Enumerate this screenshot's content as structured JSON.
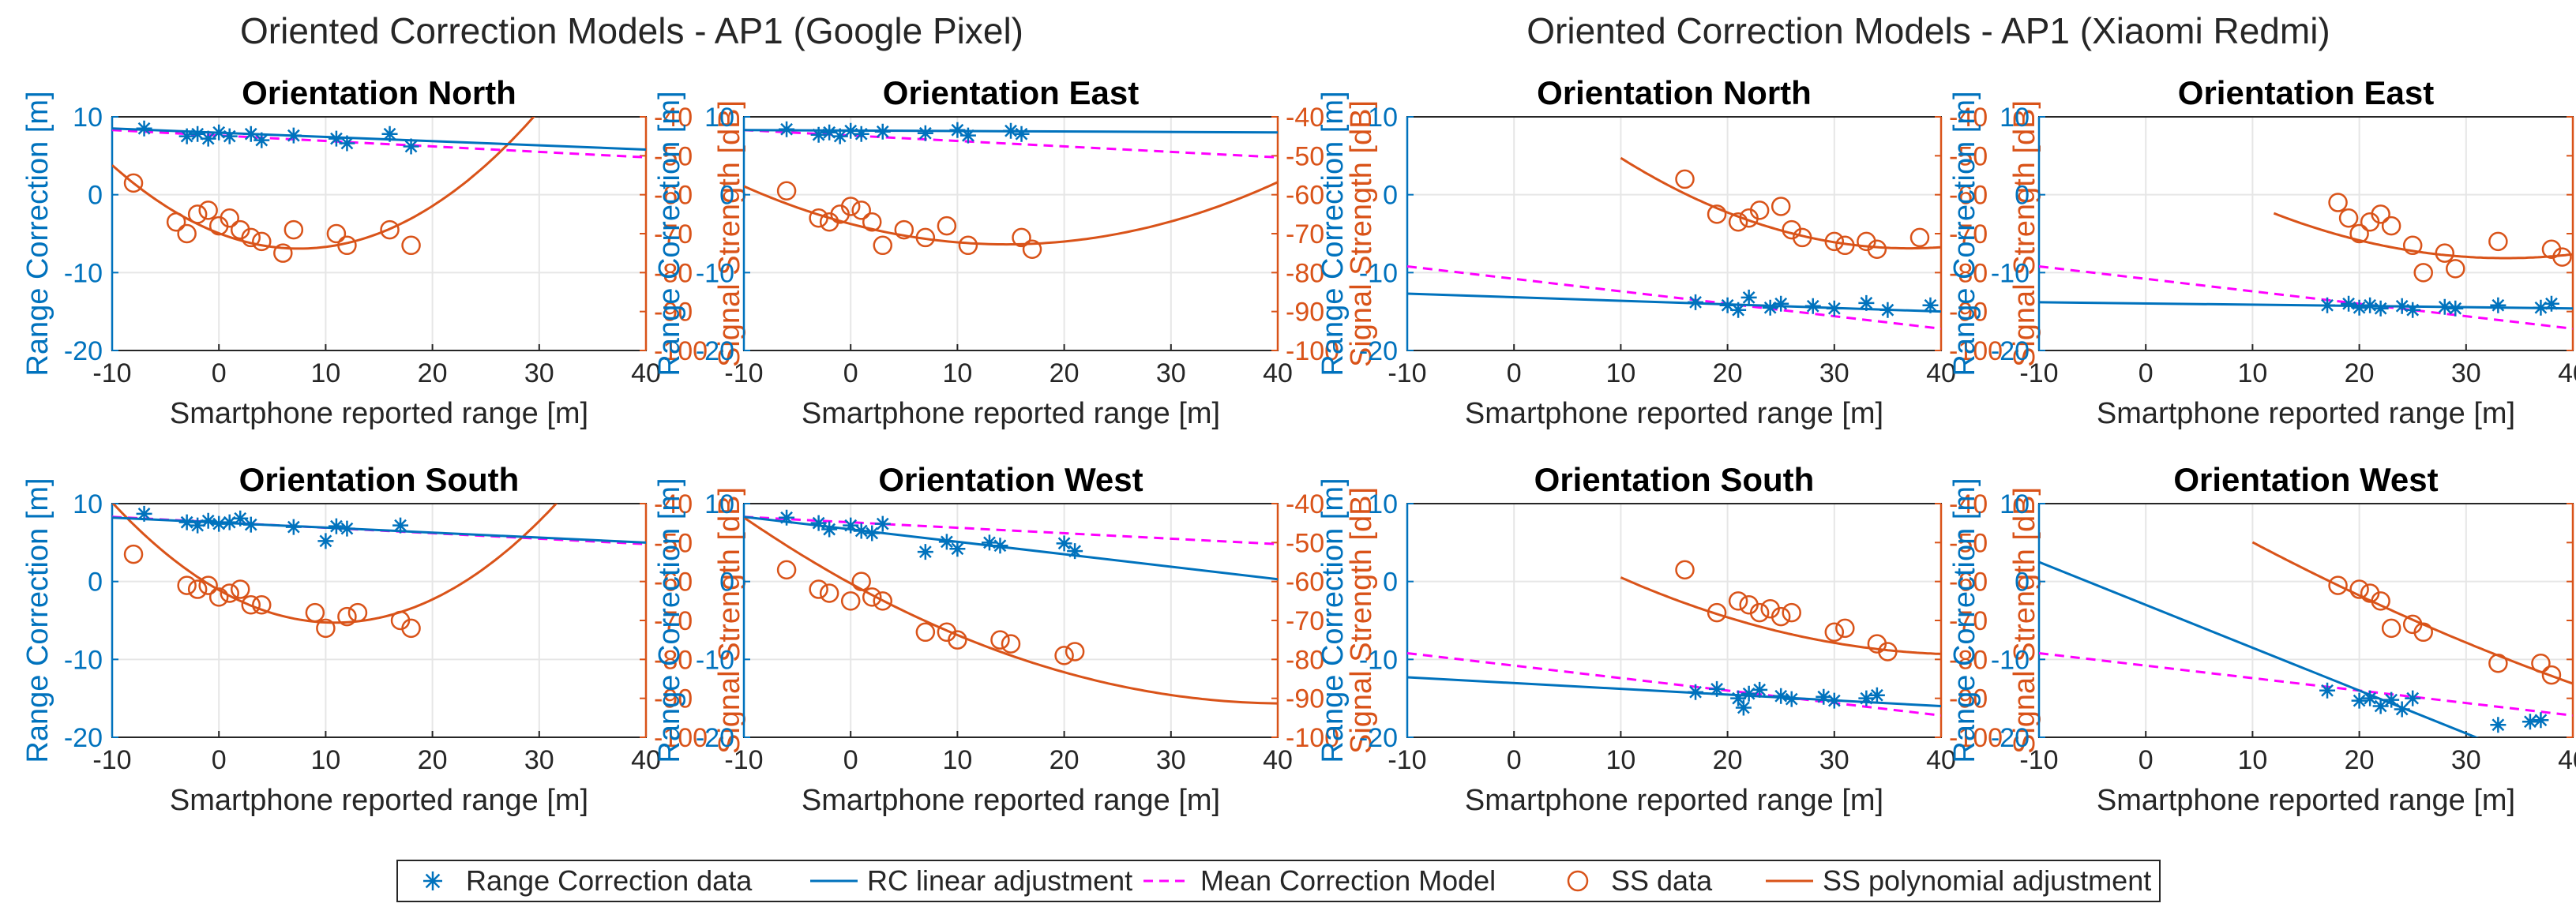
{
  "figure_titles": [
    "Oriented Correction Models - AP1 (Google Pixel)",
    "Oriented Correction Models - AP1 (Xiaomi Redmi)"
  ],
  "colors": {
    "rc": "#0072BD",
    "ss": "#D95319",
    "mean": "#FF00FF",
    "axis": "#262626",
    "grid": "#e6e6e6"
  },
  "axes_common": {
    "xlabel": "Smartphone reported range [m]",
    "ylabel_left": "Range Correction [m]",
    "ylabel_right": "Signal Strength [dB]",
    "xlim": [
      -10,
      40
    ],
    "ylim_left": [
      -20,
      10
    ],
    "ylim_right": [
      -100,
      -40
    ],
    "xticks": [
      "-10",
      "0",
      "10",
      "20",
      "30",
      "40"
    ],
    "yticks_left": [
      "10",
      "0",
      "-10",
      "-20"
    ],
    "yticks_right": [
      "-40",
      "-50",
      "-60",
      "-70",
      "-80",
      "-90",
      "-100"
    ],
    "grid": true
  },
  "legend": {
    "placement": "bottom-center",
    "entries": [
      {
        "label": "Range Correction data",
        "type": "asterisk",
        "color": "rc"
      },
      {
        "label": "RC linear adjustment",
        "type": "line",
        "color": "rc"
      },
      {
        "label": "Mean Correction Model",
        "type": "dashed",
        "color": "mean"
      },
      {
        "label": "SS data",
        "type": "circle",
        "color": "ss"
      },
      {
        "label": "SS polynomial adjustment",
        "type": "line",
        "color": "ss"
      }
    ]
  },
  "chart_data": [
    {
      "type": "scatter",
      "device": "Google Pixel",
      "title": "Orientation North",
      "rc_points": [
        [
          -7,
          8.5
        ],
        [
          -3,
          7.5
        ],
        [
          -2,
          7.8
        ],
        [
          -1,
          7.2
        ],
        [
          0,
          8
        ],
        [
          1,
          7.5
        ],
        [
          3,
          7.8
        ],
        [
          4,
          7
        ],
        [
          7,
          7.6
        ],
        [
          11,
          7.2
        ],
        [
          12,
          6.6
        ],
        [
          16,
          7.8
        ],
        [
          18,
          6.2
        ]
      ],
      "rc_fit": [
        [
          -10,
          8.5
        ],
        [
          40,
          5.8
        ]
      ],
      "mean_model": [
        [
          -10,
          8.3
        ],
        [
          40,
          4.8
        ]
      ],
      "ss_points": [
        [
          -8,
          -57
        ],
        [
          -4,
          -67
        ],
        [
          -3,
          -70
        ],
        [
          -2,
          -65
        ],
        [
          -1,
          -64
        ],
        [
          0,
          -68
        ],
        [
          1,
          -66
        ],
        [
          2,
          -69
        ],
        [
          3,
          -71
        ],
        [
          4,
          -72
        ],
        [
          6,
          -75
        ],
        [
          7,
          -69
        ],
        [
          11,
          -70
        ],
        [
          12,
          -73
        ],
        [
          16,
          -69
        ],
        [
          18,
          -73
        ]
      ],
      "ss_fit": {
        "coef": [
          0.07,
          -1.05,
          -69.9
        ],
        "x_range": [
          -10,
          40
        ]
      }
    },
    {
      "type": "scatter",
      "device": "Google Pixel",
      "title": "Orientation East",
      "rc_points": [
        [
          -6,
          8.4
        ],
        [
          -3,
          7.7
        ],
        [
          -2,
          8
        ],
        [
          -1,
          7.5
        ],
        [
          0,
          8.2
        ],
        [
          1,
          7.8
        ],
        [
          3,
          8.1
        ],
        [
          7,
          7.9
        ],
        [
          10,
          8.3
        ],
        [
          11,
          7.6
        ],
        [
          15,
          8.2
        ],
        [
          16,
          7.8
        ]
      ],
      "rc_fit": [
        [
          -10,
          8.3
        ],
        [
          40,
          8.0
        ]
      ],
      "mean_model": [
        [
          -10,
          8.3
        ],
        [
          40,
          4.8
        ]
      ],
      "ss_points": [
        [
          -6,
          -59
        ],
        [
          -3,
          -66
        ],
        [
          -2,
          -67
        ],
        [
          -1,
          -65
        ],
        [
          0,
          -63
        ],
        [
          1,
          -64
        ],
        [
          2,
          -67
        ],
        [
          3,
          -73
        ],
        [
          5,
          -69
        ],
        [
          7,
          -71
        ],
        [
          9,
          -68
        ],
        [
          11,
          -73
        ],
        [
          16,
          -71
        ],
        [
          17,
          -74
        ]
      ],
      "ss_fit": {
        "coef": [
          0.0247,
          -0.72,
          -67.5
        ],
        "x_range": [
          -10,
          40
        ]
      }
    },
    {
      "type": "scatter",
      "device": "Xiaomi Redmi",
      "title": "Orientation North",
      "rc_points": [
        [
          17,
          -13.8
        ],
        [
          20,
          -14.2
        ],
        [
          21,
          -14.8
        ],
        [
          22,
          -13.2
        ],
        [
          24,
          -14.5
        ],
        [
          25,
          -14
        ],
        [
          28,
          -14.3
        ],
        [
          30,
          -14.6
        ],
        [
          33,
          -13.9
        ],
        [
          35,
          -14.8
        ],
        [
          39,
          -14.2
        ]
      ],
      "rc_fit": [
        [
          -10,
          -12.7
        ],
        [
          40,
          -15
        ]
      ],
      "mean_model": [
        [
          -10,
          -9.2
        ],
        [
          40,
          -17.2
        ]
      ],
      "ss_points": [
        [
          16,
          -56
        ],
        [
          19,
          -65
        ],
        [
          21,
          -67
        ],
        [
          22,
          -66
        ],
        [
          23,
          -64
        ],
        [
          25,
          -63
        ],
        [
          26,
          -69
        ],
        [
          27,
          -71
        ],
        [
          30,
          -72
        ],
        [
          31,
          -73
        ],
        [
          33,
          -72
        ],
        [
          34,
          -74
        ],
        [
          38,
          -71
        ]
      ],
      "ss_fit": {
        "coef": [
          0.0318,
          -2.354,
          -30.2
        ],
        "x_range": [
          10,
          40
        ]
      }
    },
    {
      "type": "scatter",
      "device": "Xiaomi Redmi",
      "title": "Orientation East",
      "rc_points": [
        [
          17,
          -14.2
        ],
        [
          19,
          -14
        ],
        [
          20,
          -14.5
        ],
        [
          21,
          -14.2
        ],
        [
          22,
          -14.6
        ],
        [
          24,
          -14.3
        ],
        [
          25,
          -14.8
        ],
        [
          28,
          -14.4
        ],
        [
          29,
          -14.6
        ],
        [
          33,
          -14.2
        ],
        [
          37,
          -14.5
        ],
        [
          38,
          -14
        ]
      ],
      "rc_fit": [
        [
          -10,
          -13.8
        ],
        [
          40,
          -14.6
        ]
      ],
      "mean_model": [
        [
          -10,
          -9.2
        ],
        [
          40,
          -17.2
        ]
      ],
      "ss_points": [
        [
          18,
          -62
        ],
        [
          19,
          -66
        ],
        [
          20,
          -70
        ],
        [
          21,
          -67
        ],
        [
          22,
          -65
        ],
        [
          23,
          -68
        ],
        [
          25,
          -73
        ],
        [
          26,
          -80
        ],
        [
          28,
          -75
        ],
        [
          29,
          -79
        ],
        [
          33,
          -72
        ],
        [
          38,
          -74
        ],
        [
          39,
          -76
        ]
      ],
      "ss_fit": {
        "coef": [
          0.0245,
          -1.65,
          -48.5
        ],
        "x_range": [
          12,
          40
        ]
      }
    },
    {
      "type": "scatter",
      "device": "Google Pixel",
      "title": "Orientation South",
      "rc_points": [
        [
          -7,
          8.7
        ],
        [
          -3,
          7.6
        ],
        [
          -2,
          7.2
        ],
        [
          -1,
          7.8
        ],
        [
          0,
          7.4
        ],
        [
          1,
          7.6
        ],
        [
          2,
          8.1
        ],
        [
          3,
          7.3
        ],
        [
          7,
          7
        ],
        [
          10,
          5.2
        ],
        [
          11,
          7.1
        ],
        [
          12,
          6.8
        ],
        [
          17,
          7.2
        ]
      ],
      "rc_fit": [
        [
          -10,
          8.2
        ],
        [
          40,
          5.0
        ]
      ],
      "mean_model": [
        [
          -10,
          8.3
        ],
        [
          40,
          4.8
        ]
      ],
      "ss_points": [
        [
          -8,
          -53
        ],
        [
          -3,
          -61
        ],
        [
          -2,
          -62
        ],
        [
          -1,
          -61
        ],
        [
          0,
          -64
        ],
        [
          1,
          -63
        ],
        [
          2,
          -62
        ],
        [
          3,
          -66
        ],
        [
          4,
          -66
        ],
        [
          9,
          -68
        ],
        [
          10,
          -72
        ],
        [
          12,
          -69
        ],
        [
          13,
          -68
        ],
        [
          17,
          -70
        ],
        [
          18,
          -72
        ]
      ],
      "ss_fit": {
        "coef": [
          0.071,
          -1.54,
          -62.2
        ],
        "x_range": [
          -10,
          40
        ]
      }
    },
    {
      "type": "scatter",
      "device": "Google Pixel",
      "title": "Orientation West",
      "rc_points": [
        [
          -6,
          8.2
        ],
        [
          -3,
          7.5
        ],
        [
          -2,
          6.7
        ],
        [
          0,
          7.2
        ],
        [
          1,
          6.5
        ],
        [
          2,
          6.2
        ],
        [
          3,
          7.4
        ],
        [
          7,
          3.8
        ],
        [
          9,
          5.1
        ],
        [
          10,
          4.2
        ],
        [
          13,
          5
        ],
        [
          14,
          4.6
        ],
        [
          20,
          4.9
        ],
        [
          21,
          3.9
        ]
      ],
      "rc_fit": [
        [
          -10,
          8.3
        ],
        [
          40,
          0.3
        ]
      ],
      "mean_model": [
        [
          -10,
          8.3
        ],
        [
          40,
          4.8
        ]
      ],
      "ss_points": [
        [
          -6,
          -57
        ],
        [
          -3,
          -62
        ],
        [
          -2,
          -63
        ],
        [
          0,
          -65
        ],
        [
          1,
          -60
        ],
        [
          2,
          -64
        ],
        [
          3,
          -65
        ],
        [
          7,
          -73
        ],
        [
          9,
          -73
        ],
        [
          10,
          -75
        ],
        [
          14,
          -75
        ],
        [
          15,
          -76
        ],
        [
          20,
          -79
        ],
        [
          21,
          -78
        ]
      ],
      "ss_fit": {
        "coef": [
          0.0185,
          -1.51,
          -60.5
        ],
        "x_range": [
          -10,
          40
        ]
      }
    },
    {
      "type": "scatter",
      "device": "Xiaomi Redmi",
      "title": "Orientation South",
      "rc_points": [
        [
          17,
          -14.2
        ],
        [
          19,
          -13.8
        ],
        [
          21,
          -15
        ],
        [
          21.5,
          -16.2
        ],
        [
          22,
          -14.4
        ],
        [
          23,
          -13.9
        ],
        [
          25,
          -14.7
        ],
        [
          26,
          -15.1
        ],
        [
          29,
          -14.8
        ],
        [
          30,
          -15.3
        ],
        [
          33,
          -15
        ],
        [
          34,
          -14.6
        ]
      ],
      "rc_fit": [
        [
          -10,
          -12.3
        ],
        [
          40,
          -16
        ]
      ],
      "mean_model": [
        [
          -10,
          -9.2
        ],
        [
          40,
          -17.2
        ]
      ],
      "ss_points": [
        [
          16,
          -57
        ],
        [
          19,
          -68
        ],
        [
          21,
          -65
        ],
        [
          22,
          -66
        ],
        [
          23,
          -68
        ],
        [
          24,
          -67
        ],
        [
          25,
          -69
        ],
        [
          26,
          -68
        ],
        [
          30,
          -73
        ],
        [
          31,
          -72
        ],
        [
          34,
          -76
        ],
        [
          35,
          -78
        ]
      ],
      "ss_fit": {
        "coef": [
          0.0185,
          -1.58,
          -45
        ],
        "x_range": [
          10,
          40
        ]
      }
    },
    {
      "type": "scatter",
      "device": "Xiaomi Redmi",
      "title": "Orientation West",
      "rc_points": [
        [
          17,
          -14
        ],
        [
          20,
          -15.3
        ],
        [
          21,
          -15
        ],
        [
          22,
          -16
        ],
        [
          23,
          -15.2
        ],
        [
          24,
          -16.4
        ],
        [
          25,
          -15
        ],
        [
          33,
          -18.4
        ],
        [
          36,
          -18
        ],
        [
          37,
          -17.8
        ]
      ],
      "rc_fit": [
        [
          -10,
          2.5
        ],
        [
          40,
          -25
        ]
      ],
      "mean_model": [
        [
          -10,
          -9.2
        ],
        [
          40,
          -17.2
        ]
      ],
      "ss_points": [
        [
          18,
          -61
        ],
        [
          20,
          -62
        ],
        [
          21,
          -63
        ],
        [
          22,
          -65
        ],
        [
          23,
          -72
        ],
        [
          25,
          -71
        ],
        [
          26,
          -73
        ],
        [
          33,
          -81
        ],
        [
          37,
          -81
        ],
        [
          38,
          -84
        ]
      ],
      "ss_fit": {
        "coef": [
          0.0078,
          -1.6,
          -34.7
        ],
        "x_range": [
          10,
          40
        ]
      }
    }
  ]
}
